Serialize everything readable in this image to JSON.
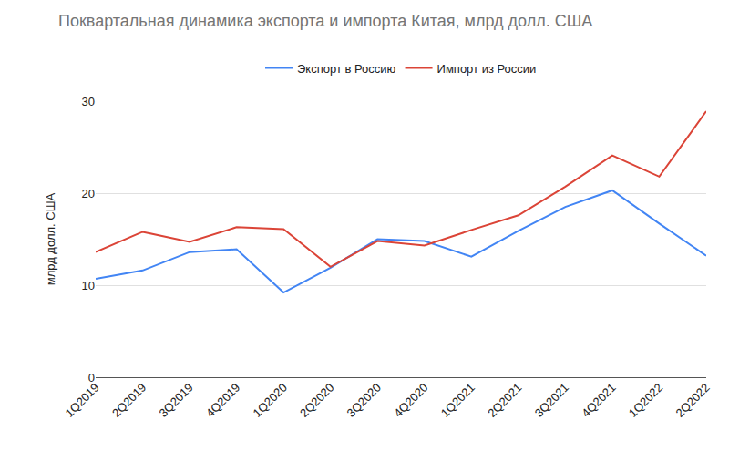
{
  "chart_data": {
    "type": "line",
    "title": "Поквартальная динамика экспорта и импорта Китая, млрд долл. США",
    "y_label": "млрд долл. США",
    "categories": [
      "1Q2019",
      "2Q2019",
      "3Q2019",
      "4Q2019",
      "1Q2020",
      "2Q2020",
      "3Q2020",
      "4Q2020",
      "1Q2021",
      "2Q2021",
      "3Q2021",
      "4Q2021",
      "1Q2022",
      "2Q2022"
    ],
    "series": [
      {
        "name": "Экспорт в Россию",
        "color": "#4285f4",
        "values": [
          10.7,
          11.6,
          13.6,
          13.9,
          9.2,
          11.9,
          15.0,
          14.8,
          13.1,
          15.9,
          18.5,
          20.3,
          16.7,
          13.2
        ]
      },
      {
        "name": "Импорт из России",
        "color": "#db4437",
        "values": [
          13.6,
          15.8,
          14.7,
          16.3,
          16.1,
          12.0,
          14.8,
          14.3,
          16.0,
          17.6,
          20.7,
          24.1,
          21.8,
          28.9
        ]
      }
    ],
    "ylim": [
      0,
      30
    ],
    "yticks": [
      0,
      10,
      20,
      30
    ],
    "grid": true,
    "legend": "top"
  }
}
